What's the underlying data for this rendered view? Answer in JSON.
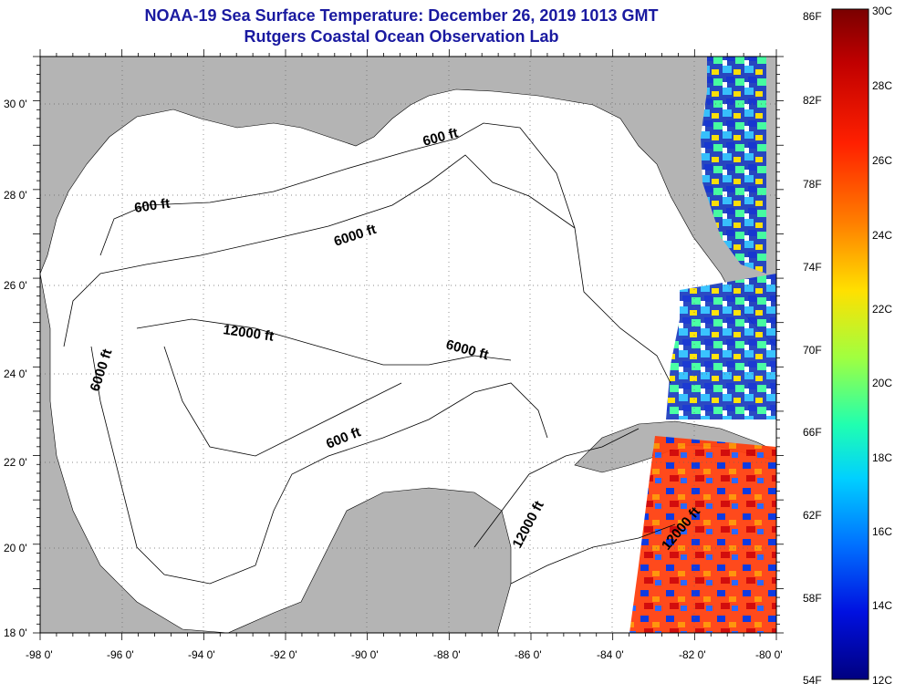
{
  "title": {
    "line1": "NOAA-19 Sea Surface Temperature:  December 26, 2019 1013 GMT",
    "line2": "Rutgers Coastal Ocean Observation Lab"
  },
  "map": {
    "lat_labels": [
      "30 0'",
      "28 0'",
      "26 0'",
      "24 0'",
      "22 0'",
      "20 0'",
      "18 0'"
    ],
    "lon_labels": [
      "-98 0'",
      "-96 0'",
      "-94 0'",
      "-92 0'",
      "-90 0'",
      "-88 0'",
      "-86 0'",
      "-84 0'",
      "-82 0'",
      "-80 0'"
    ],
    "contour_labels": [
      "600 ft",
      "600 ft",
      "600 ft",
      "6000 ft",
      "6000 ft",
      "6000 ft",
      "12000 ft",
      "12000 ft",
      "12000 ft"
    ],
    "land_color": "#b4b4b4",
    "water_color": "#ffffff"
  },
  "colorbar": {
    "fahrenheit": [
      "86F",
      "82F",
      "78F",
      "74F",
      "70F",
      "66F",
      "62F",
      "58F",
      "54F"
    ],
    "celsius": [
      "30C",
      "28C",
      "26C",
      "24C",
      "22C",
      "20C",
      "18C",
      "16C",
      "14C",
      "12C"
    ],
    "colors": [
      "#7a0000",
      "#d00000",
      "#ff3000",
      "#ff9000",
      "#ffe000",
      "#c0ff30",
      "#40ffa0",
      "#00e0ff",
      "#0080ff",
      "#0020ff",
      "#00008a"
    ]
  }
}
